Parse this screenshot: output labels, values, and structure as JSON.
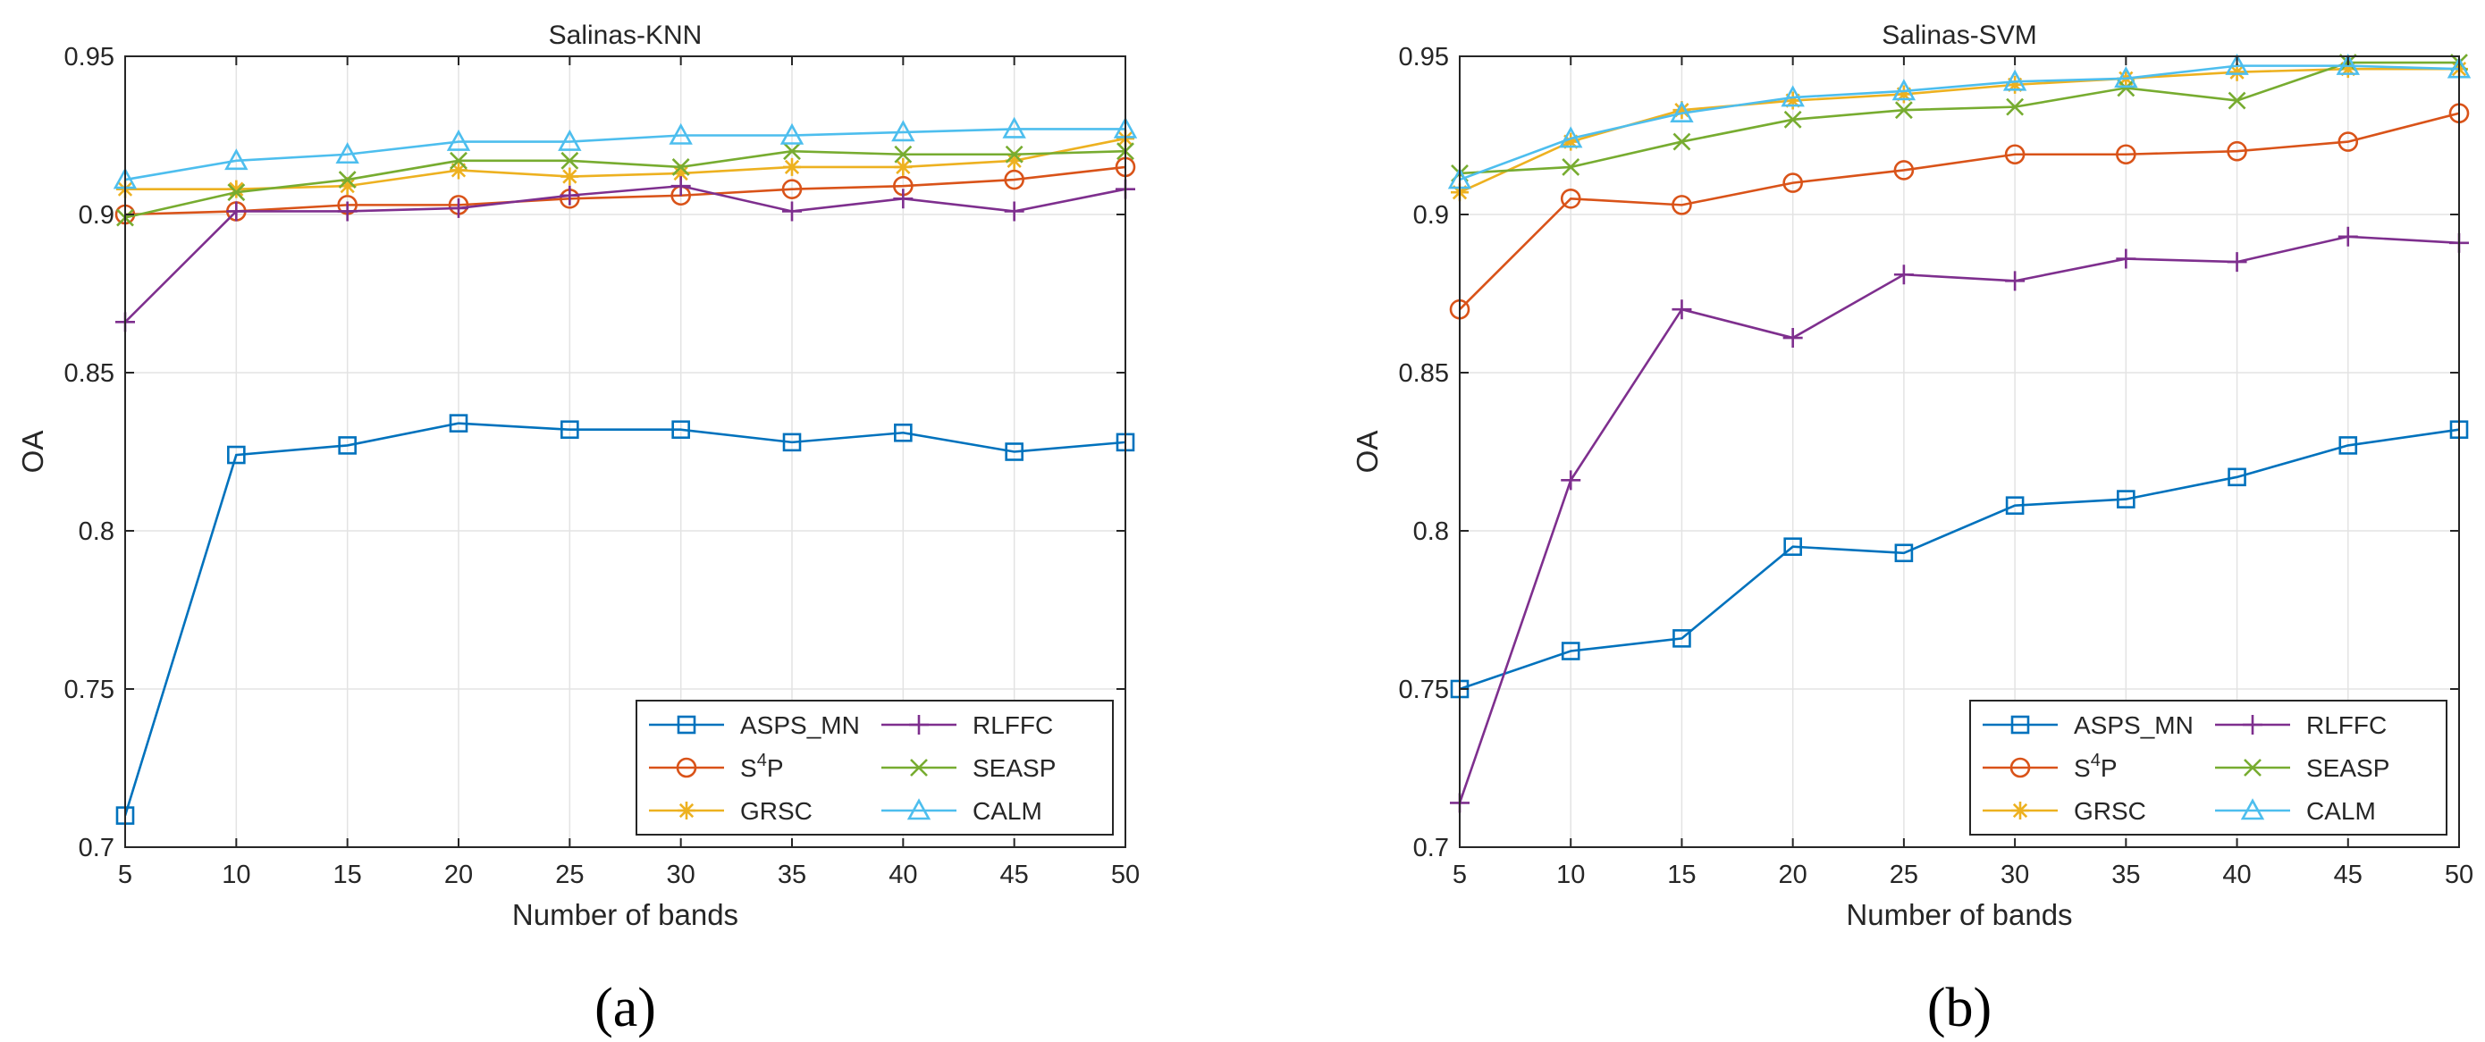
{
  "chart_data": [
    {
      "type": "line",
      "title": "Salinas-KNN",
      "xlabel": "Number of bands",
      "ylabel": "OA",
      "panel_label": "(a)",
      "x": [
        5,
        10,
        15,
        20,
        25,
        30,
        35,
        40,
        45,
        50
      ],
      "xlim": [
        5,
        50
      ],
      "ylim": [
        0.7,
        0.95
      ],
      "xticks": [
        "5",
        "10",
        "15",
        "20",
        "25",
        "30",
        "35",
        "40",
        "45",
        "50"
      ],
      "yticks": [
        "0.7",
        "0.75",
        "0.8",
        "0.85",
        "0.9",
        "0.95"
      ],
      "grid": true,
      "legend_position": "bottom-right",
      "series": [
        {
          "name": "ASPS_MN",
          "color": "#0072BD",
          "marker": "square",
          "values": [
            0.71,
            0.824,
            0.827,
            0.834,
            0.832,
            0.832,
            0.828,
            0.831,
            0.825,
            0.828
          ]
        },
        {
          "name": "S4P",
          "color": "#D95319",
          "marker": "circle",
          "values": [
            0.9,
            0.901,
            0.903,
            0.903,
            0.905,
            0.906,
            0.908,
            0.909,
            0.911,
            0.915
          ]
        },
        {
          "name": "GRSC",
          "color": "#EDB120",
          "marker": "asterisk",
          "values": [
            0.908,
            0.908,
            0.909,
            0.914,
            0.912,
            0.913,
            0.915,
            0.915,
            0.917,
            0.924
          ]
        },
        {
          "name": "RLFFC",
          "color": "#7E2F8E",
          "marker": "plus",
          "values": [
            0.866,
            0.901,
            0.901,
            0.902,
            0.906,
            0.909,
            0.901,
            0.905,
            0.901,
            0.908
          ]
        },
        {
          "name": "SEASP",
          "color": "#77AC30",
          "marker": "x",
          "values": [
            0.899,
            0.907,
            0.911,
            0.917,
            0.917,
            0.915,
            0.92,
            0.919,
            0.919,
            0.92
          ]
        },
        {
          "name": "CALM",
          "color": "#4DBEEE",
          "marker": "triangle",
          "values": [
            0.911,
            0.917,
            0.919,
            0.923,
            0.923,
            0.925,
            0.925,
            0.926,
            0.927,
            0.927
          ]
        }
      ]
    },
    {
      "type": "line",
      "title": "Salinas-SVM",
      "xlabel": "Number of bands",
      "ylabel": "OA",
      "panel_label": "(b)",
      "x": [
        5,
        10,
        15,
        20,
        25,
        30,
        35,
        40,
        45,
        50
      ],
      "xlim": [
        5,
        50
      ],
      "ylim": [
        0.7,
        0.95
      ],
      "xticks": [
        "5",
        "10",
        "15",
        "20",
        "25",
        "30",
        "35",
        "40",
        "45",
        "50"
      ],
      "yticks": [
        "0.7",
        "0.75",
        "0.8",
        "0.85",
        "0.9",
        "0.95"
      ],
      "grid": true,
      "legend_position": "bottom-right",
      "series": [
        {
          "name": "ASPS_MN",
          "color": "#0072BD",
          "marker": "square",
          "values": [
            0.75,
            0.762,
            0.766,
            0.795,
            0.793,
            0.808,
            0.81,
            0.817,
            0.827,
            0.832
          ]
        },
        {
          "name": "S4P",
          "color": "#D95319",
          "marker": "circle",
          "values": [
            0.87,
            0.905,
            0.903,
            0.91,
            0.914,
            0.919,
            0.919,
            0.92,
            0.923,
            0.932
          ]
        },
        {
          "name": "GRSC",
          "color": "#EDB120",
          "marker": "asterisk",
          "values": [
            0.907,
            0.923,
            0.933,
            0.936,
            0.938,
            0.941,
            0.943,
            0.945,
            0.946,
            0.946
          ]
        },
        {
          "name": "RLFFC",
          "color": "#7E2F8E",
          "marker": "plus",
          "values": [
            0.714,
            0.816,
            0.87,
            0.861,
            0.881,
            0.879,
            0.886,
            0.885,
            0.893,
            0.891
          ]
        },
        {
          "name": "SEASP",
          "color": "#77AC30",
          "marker": "x",
          "values": [
            0.913,
            0.915,
            0.923,
            0.93,
            0.933,
            0.934,
            0.94,
            0.936,
            0.948,
            0.948
          ]
        },
        {
          "name": "CALM",
          "color": "#4DBEEE",
          "marker": "triangle",
          "values": [
            0.911,
            0.924,
            0.932,
            0.937,
            0.939,
            0.942,
            0.943,
            0.947,
            0.947,
            0.946
          ]
        }
      ]
    }
  ]
}
